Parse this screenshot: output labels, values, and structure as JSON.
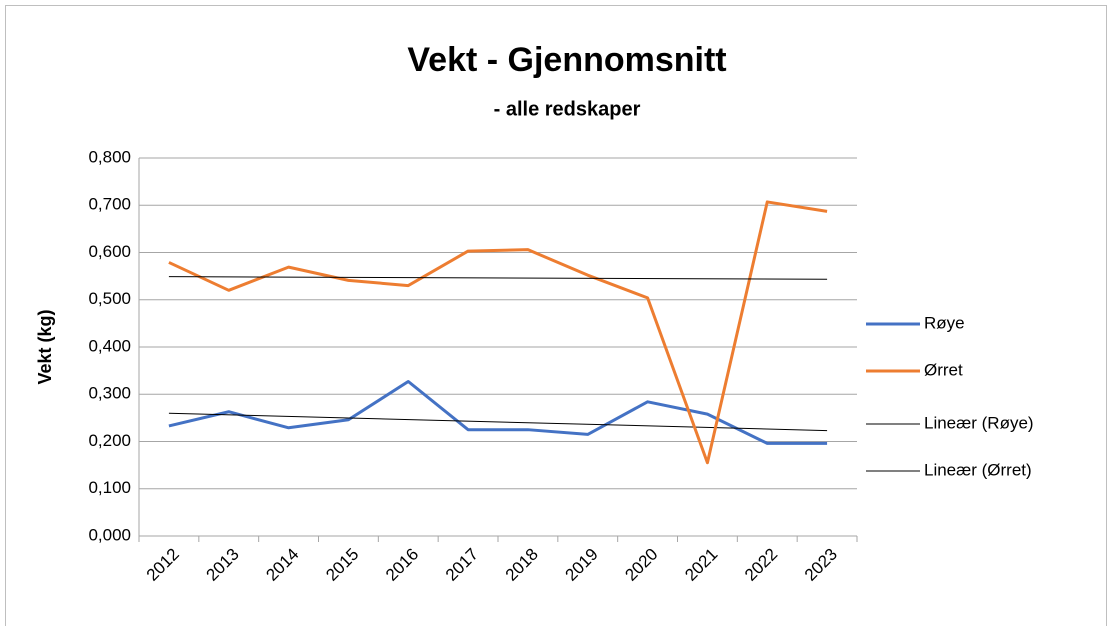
{
  "chart_data": {
    "type": "line",
    "title": "Vekt - Gjennomsnitt",
    "subtitle": "- alle redskaper",
    "y_label": "Vekt (kg)",
    "categories": [
      "2012",
      "2013",
      "2014",
      "2015",
      "2016",
      "2017",
      "2018",
      "2019",
      "2020",
      "2021",
      "2022",
      "2023"
    ],
    "series": [
      {
        "name": "Røye",
        "color": "#4472c4",
        "trend_name": "Lineær (Røye)",
        "trend_color": "#000000",
        "values": [
          0.233,
          0.263,
          0.229,
          0.246,
          0.327,
          0.225,
          0.225,
          0.215,
          0.284,
          0.258,
          0.196,
          0.196
        ]
      },
      {
        "name": "Ørret",
        "color": "#ed7d31",
        "trend_name": "Lineær (Ørret)",
        "trend_color": "#000000",
        "values": [
          0.579,
          0.52,
          0.569,
          0.541,
          0.53,
          0.603,
          0.606,
          0.552,
          0.504,
          0.155,
          0.707,
          0.687
        ]
      }
    ],
    "ylim": [
      0,
      0.8
    ],
    "yticks": [
      {
        "value": 0,
        "label": "0,000"
      },
      {
        "value": 0.1,
        "label": "0,100"
      },
      {
        "value": 0.2,
        "label": "0,200"
      },
      {
        "value": 0.3,
        "label": "0,300"
      },
      {
        "value": 0.4,
        "label": "0,400"
      },
      {
        "value": 0.5,
        "label": "0,500"
      },
      {
        "value": 0.6,
        "label": "0,600"
      },
      {
        "value": 0.7,
        "label": "0,700"
      },
      {
        "value": 0.8,
        "label": "0,800"
      }
    ],
    "grid": true,
    "legend": "right"
  }
}
